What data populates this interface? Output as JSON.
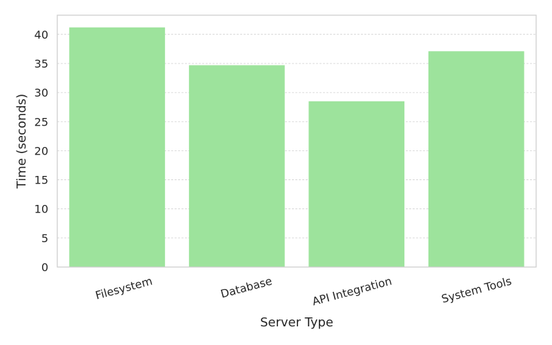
{
  "chart_data": {
    "type": "bar",
    "categories": [
      "Filesystem",
      "Database",
      "API Integration",
      "System Tools"
    ],
    "values": [
      41.2,
      34.7,
      28.5,
      37.1
    ],
    "title": "",
    "xlabel": "Server Type",
    "ylabel": "Time (seconds)",
    "ylim": [
      0,
      43.3
    ],
    "yticks": [
      0,
      5,
      10,
      15,
      20,
      25,
      30,
      35,
      40
    ],
    "grid": "horizontal dashed",
    "bar_color": "#9de39c",
    "legend": "none",
    "xtick_rotation": "rotated ~15 degrees"
  }
}
